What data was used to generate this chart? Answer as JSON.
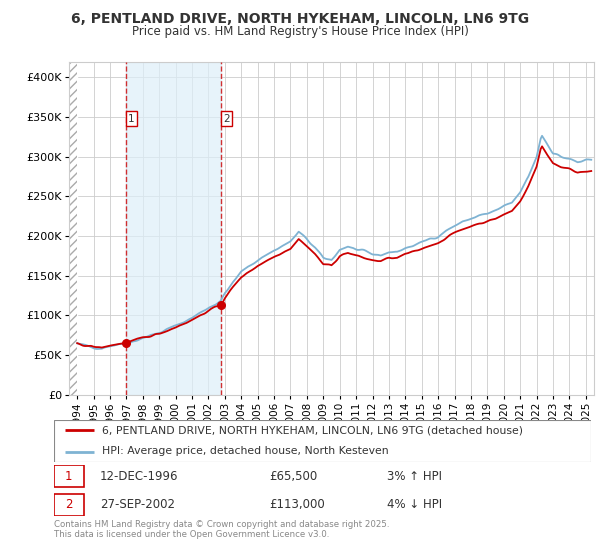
{
  "title": "6, PENTLAND DRIVE, NORTH HYKEHAM, LINCOLN, LN6 9TG",
  "subtitle": "Price paid vs. HM Land Registry's House Price Index (HPI)",
  "legend_line1": "6, PENTLAND DRIVE, NORTH HYKEHAM, LINCOLN, LN6 9TG (detached house)",
  "legend_line2": "HPI: Average price, detached house, North Kesteven",
  "transaction1_date": "12-DEC-1996",
  "transaction1_price": "£65,500",
  "transaction1_hpi": "3% ↑ HPI",
  "transaction2_date": "27-SEP-2002",
  "transaction2_price": "£113,000",
  "transaction2_hpi": "4% ↓ HPI",
  "footnote": "Contains HM Land Registry data © Crown copyright and database right 2025.\nThis data is licensed under the Open Government Licence v3.0.",
  "red_color": "#cc0000",
  "blue_color": "#7fb3d3",
  "transaction1_x": 1996.96,
  "transaction2_x": 2002.75,
  "ylim": [
    0,
    420000
  ],
  "ytick_labels": [
    "£0",
    "£50K",
    "£100K",
    "£150K",
    "£200K",
    "£250K",
    "£300K",
    "£350K",
    "£400K"
  ],
  "xlim_start": 1993.5,
  "xlim_end": 2025.5
}
